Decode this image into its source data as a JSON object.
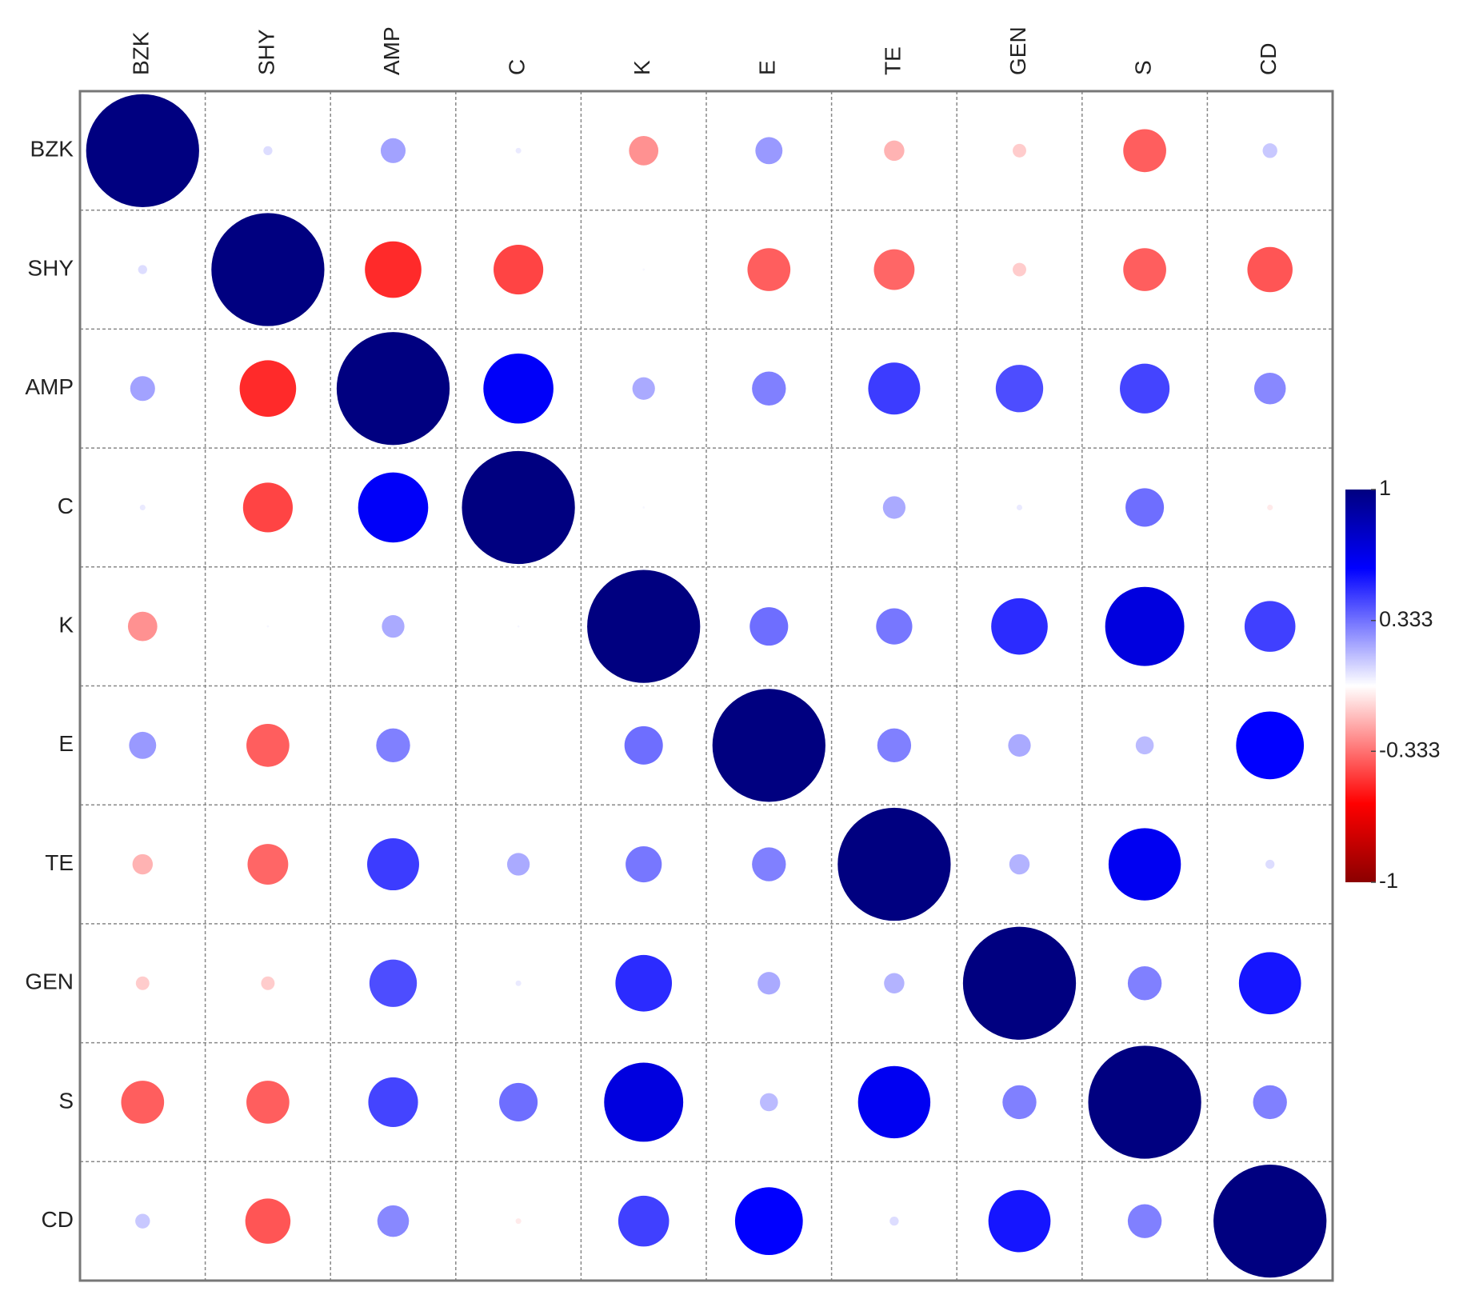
{
  "chart_data": {
    "type": "correlation",
    "labels": [
      "BZK",
      "SHY",
      "AMP",
      "C",
      "K",
      "E",
      "TE",
      "GEN",
      "S",
      "CD"
    ],
    "matrix": [
      [
        1,
        0.08,
        0.22,
        0.05,
        -0.26,
        0.24,
        -0.18,
        -0.12,
        -0.38,
        0.13
      ],
      [
        0.08,
        1,
        -0.5,
        -0.44,
        0.02,
        -0.38,
        -0.36,
        -0.12,
        -0.38,
        -0.4
      ],
      [
        0.22,
        -0.5,
        1,
        0.62,
        0.2,
        0.3,
        0.46,
        0.42,
        0.44,
        0.28
      ],
      [
        0.05,
        -0.44,
        0.62,
        1,
        0.02,
        0,
        0.2,
        0.05,
        0.34,
        -0.05
      ],
      [
        -0.26,
        0.02,
        0.2,
        0.02,
        1,
        0.34,
        0.32,
        0.5,
        0.7,
        0.45
      ],
      [
        0.24,
        -0.38,
        0.3,
        0,
        0.34,
        1,
        0.3,
        0.2,
        0.16,
        0.6
      ],
      [
        -0.18,
        -0.36,
        0.46,
        0.2,
        0.32,
        0.3,
        1,
        0.18,
        0.64,
        0.08
      ],
      [
        -0.12,
        -0.12,
        0.42,
        0.05,
        0.5,
        0.2,
        0.18,
        1,
        0.3,
        0.55
      ],
      [
        -0.38,
        -0.38,
        0.44,
        0.34,
        0.7,
        0.16,
        0.64,
        0.3,
        1,
        0.3
      ],
      [
        0.13,
        -0.4,
        0.28,
        -0.05,
        0.45,
        0.6,
        0.08,
        0.55,
        0.3,
        1
      ]
    ],
    "clim": [
      -1,
      1
    ],
    "cticks": [
      -1,
      -0.333,
      0.333,
      1
    ],
    "color_stops": [
      {
        "value": -1,
        "color": "#8b0000"
      },
      {
        "value": -0.6,
        "color": "#ff0000"
      },
      {
        "value": 0,
        "color": "#ffffff"
      },
      {
        "value": 0.6,
        "color": "#0000ff"
      },
      {
        "value": 1,
        "color": "#000080"
      }
    ],
    "grid": true
  }
}
